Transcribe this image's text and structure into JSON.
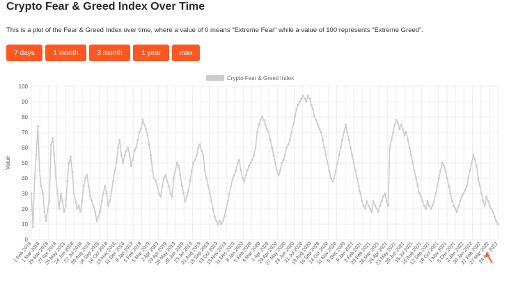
{
  "page": {
    "title": "Crypto Fear & Greed Index Over Time",
    "description": "This is a plot of the Fear & Greed Index over time, where a value of 0 means \"Extreme Fear\" while a value of 100 represents \"Extreme Greed\"."
  },
  "range_buttons": [
    {
      "label": "7 days"
    },
    {
      "label": "1 month"
    },
    {
      "label": "3 month"
    },
    {
      "label": "1 year"
    },
    {
      "label": "max"
    }
  ],
  "colors": {
    "accent": "#ff5722",
    "series": "#cccccc",
    "grid": "#ececec",
    "annotation_arrow": "#ff5722"
  },
  "annotation": {
    "icon": "arrow-pointer-icon"
  },
  "chart_data": {
    "type": "line",
    "title": "",
    "xlabel": "",
    "ylabel": "Value",
    "ylim": [
      0,
      100
    ],
    "y_ticks": [
      0,
      10,
      20,
      30,
      40,
      50,
      60,
      70,
      80,
      90,
      100
    ],
    "grid": true,
    "legend_position": "top-center",
    "x_tick_labels": [
      "1 Feb 2018",
      "1 Mar 2018",
      "29 Mar 2018",
      "27 Apr 2018",
      "25 May 2018",
      "24 Jun 2018",
      "22 Jul 2018",
      "20 Aug 2018",
      "18 Sep 2018",
      "16 Oct 2018",
      "13 Nov 2018",
      "11 Dec 2018",
      "8 Jan 2019",
      "5 Feb 2019",
      "5 Mar 2019",
      "2 Apr 2019",
      "29 Apr 2019",
      "28 May 2019",
      "25 Jun 2019",
      "23 Jul 2019",
      "21 Aug 2019",
      "18 Sep 2019",
      "15 Oct 2019",
      "13 Nov 2019",
      "11 Dec 2019",
      "8 Jan 2020",
      "5 Feb 2020",
      "4 Mar 2020",
      "1 Apr 2020",
      "29 Apr 2020",
      "27 May 2020",
      "24 Jun 2020",
      "21 Jul 2020",
      "19 Aug 2020",
      "16 Sep 2020",
      "14 Oct 2020",
      "11 Nov 2020",
      "9 Dec 2020",
      "6 Jan 2021",
      "3 Feb 2021",
      "28 Feb 2021",
      "28 Mar 2021",
      "25 Apr 2021",
      "23 May 2021",
      "20 Jun 2021",
      "18 Jul 2021",
      "15 Aug 2021",
      "12 Sep 2021",
      "10 Oct 2021",
      "7 Nov 2021",
      "5 Dec 2021",
      "2 Jan 2022",
      "30 Jan 2022",
      "27 Feb 2022",
      "27 Mar 2022",
      "24 Apr 2022"
    ],
    "series": [
      {
        "name": "Crypto Fear & Greed Index",
        "values": [
          30,
          8,
          40,
          55,
          74,
          45,
          35,
          30,
          18,
          12,
          20,
          25,
          62,
          66,
          55,
          40,
          30,
          20,
          30,
          25,
          18,
          22,
          38,
          50,
          54,
          44,
          30,
          25,
          20,
          22,
          18,
          25,
          35,
          40,
          42,
          35,
          28,
          25,
          22,
          18,
          12,
          15,
          18,
          25,
          30,
          35,
          30,
          22,
          25,
          32,
          38,
          45,
          50,
          60,
          65,
          55,
          50,
          55,
          58,
          60,
          55,
          48,
          52,
          58,
          60,
          65,
          70,
          72,
          78,
          75,
          72,
          68,
          62,
          55,
          45,
          40,
          38,
          35,
          30,
          28,
          35,
          40,
          42,
          38,
          35,
          30,
          28,
          40,
          45,
          50,
          48,
          42,
          35,
          30,
          25,
          28,
          32,
          38,
          45,
          50,
          52,
          55,
          60,
          62,
          58,
          55,
          45,
          40,
          35,
          30,
          25,
          20,
          15,
          12,
          10,
          12,
          10,
          12,
          15,
          20,
          25,
          30,
          35,
          40,
          42,
          45,
          50,
          52,
          45,
          40,
          38,
          42,
          45,
          48,
          50,
          52,
          55,
          60,
          70,
          75,
          78,
          80,
          78,
          75,
          72,
          70,
          65,
          60,
          55,
          50,
          45,
          42,
          45,
          50,
          52,
          55,
          60,
          62,
          65,
          70,
          75,
          80,
          85,
          88,
          90,
          92,
          94,
          92,
          90,
          94,
          92,
          88,
          85,
          80,
          78,
          75,
          72,
          70,
          65,
          60,
          55,
          50,
          45,
          40,
          38,
          40,
          45,
          50,
          55,
          60,
          65,
          70,
          75,
          70,
          65,
          60,
          55,
          50,
          45,
          40,
          35,
          30,
          25,
          22,
          20,
          25,
          22,
          20,
          18,
          25,
          22,
          20,
          18,
          22,
          25,
          28,
          30,
          25,
          22,
          60,
          65,
          70,
          75,
          78,
          76,
          72,
          75,
          72,
          68,
          70,
          65,
          60,
          55,
          50,
          45,
          40,
          35,
          30,
          28,
          25,
          22,
          20,
          25,
          22,
          20,
          22,
          25,
          30,
          35,
          40,
          45,
          50,
          48,
          45,
          40,
          35,
          30,
          25,
          22,
          20,
          18,
          22,
          25,
          28,
          30,
          32,
          35,
          40,
          45,
          50,
          55,
          52,
          48,
          40,
          35,
          30,
          25,
          22,
          28,
          25,
          22,
          20,
          18,
          15,
          12,
          10
        ]
      }
    ]
  }
}
